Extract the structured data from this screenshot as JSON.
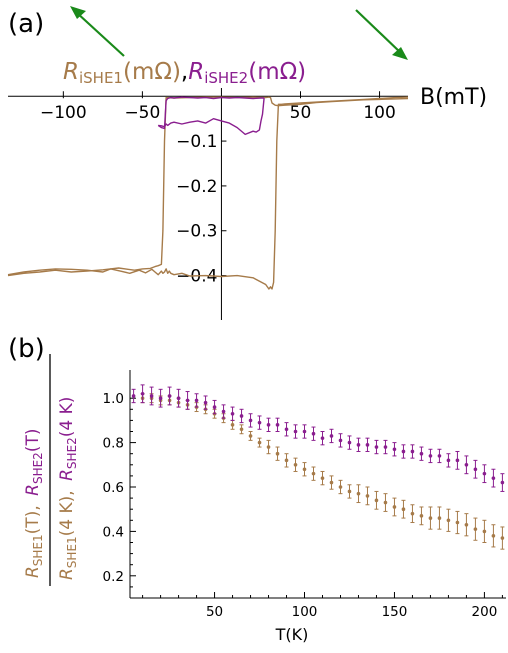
{
  "panels": {
    "a": {
      "label": "(a)",
      "legend": {
        "rishe1": {
          "main": "R",
          "sub": "iSHE1",
          "unit": "(mΩ)"
        },
        "comma": ",",
        "rishe2": {
          "main": "R",
          "sub": "iSHE2",
          "unit": "(mΩ)"
        }
      },
      "xlabel": "B(mT)"
    },
    "b": {
      "label": "(b)",
      "xlabel": "T(K)",
      "ylabel": {
        "num1_main": "R",
        "num1_sub": "SHE1",
        "num1_rest": "(T),",
        "num2_main": "R",
        "num2_sub": "SHE2",
        "num2_rest": "(T)",
        "den1_main": "R",
        "den1_sub": "SHE1",
        "den1_rest": "(4 K),",
        "den2_main": "R",
        "den2_sub": "SHE2",
        "den2_rest": "(4 K)"
      }
    }
  },
  "colors": {
    "series1": "#a67b4a",
    "series2": "#8a1e8f",
    "arrow": "#1a8a1a",
    "axis": "#000000"
  },
  "icons": {
    "arrow_up_left": "arrow-up-left-icon",
    "arrow_down_right": "arrow-down-right-icon"
  },
  "chart_data": [
    {
      "type": "line",
      "panel": "a",
      "xlabel": "B(mT)",
      "xlim": [
        -135,
        118
      ],
      "ylim": [
        -0.45,
        0.005
      ],
      "x_ticks": [
        -100,
        -50,
        50,
        100
      ],
      "x_tick_labels": [
        "−100",
        "−50",
        "50",
        "100"
      ],
      "y_ticks": [
        -0.1,
        -0.2,
        -0.3,
        -0.4
      ],
      "y_tick_labels": [
        "−0.1",
        "−0.2",
        "−0.3",
        "−0.4"
      ],
      "series": [
        {
          "name": "RiSHE1",
          "color": "#a67b4a",
          "sweeps": [
            {
              "x": [
                -135,
                -125,
                -115,
                -105,
                -95,
                -85,
                -75,
                -65,
                -55,
                -50,
                -45,
                -42,
                -40,
                -38,
                -37,
                -36,
                -35,
                -30,
                -20,
                -10,
                0,
                10,
                20,
                28,
                30,
                31,
                32,
                34,
                36,
                40,
                50,
                60,
                70,
                80,
                90,
                100,
                110,
                118
              ],
              "y": [
                -0.4,
                -0.395,
                -0.392,
                -0.388,
                -0.392,
                -0.39,
                -0.387,
                -0.383,
                -0.388,
                -0.385,
                -0.384,
                -0.38,
                -0.378,
                -0.375,
                -0.3,
                -0.1,
                -0.003,
                -0.004,
                -0.003,
                -0.002,
                -0.002,
                -0.003,
                -0.002,
                -0.003,
                -0.002,
                -0.003,
                -0.015,
                -0.02,
                -0.021,
                -0.02,
                -0.018,
                -0.014,
                -0.012,
                -0.01,
                -0.008,
                -0.007,
                -0.006,
                -0.005
              ]
            },
            {
              "x": [
                118,
                110,
                100,
                90,
                80,
                70,
                60,
                50,
                40,
                38,
                36,
                35,
                34,
                33,
                32,
                31,
                30,
                28,
                20,
                10,
                0,
                -10,
                -20,
                -25,
                -30,
                -32,
                -33,
                -34,
                -35,
                -36,
                -37,
                -38,
                -40,
                -42,
                -44,
                -48,
                -52,
                -58,
                -64,
                -70,
                -75,
                -85,
                -95,
                -105,
                -115,
                -125,
                -135
              ],
              "y": [
                -0.002,
                -0.003,
                -0.005,
                -0.007,
                -0.009,
                -0.011,
                -0.013,
                -0.015,
                -0.017,
                -0.018,
                -0.018,
                -0.1,
                -0.3,
                -0.415,
                -0.43,
                -0.425,
                -0.43,
                -0.42,
                -0.405,
                -0.4,
                -0.402,
                -0.4,
                -0.401,
                -0.395,
                -0.398,
                -0.395,
                -0.39,
                -0.395,
                -0.385,
                -0.392,
                -0.395,
                -0.39,
                -0.398,
                -0.392,
                -0.386,
                -0.394,
                -0.388,
                -0.395,
                -0.39,
                -0.385,
                -0.392,
                -0.388,
                -0.386,
                -0.385,
                -0.388,
                -0.392,
                -0.398
              ]
            }
          ]
        },
        {
          "name": "RiSHE2",
          "color": "#8a1e8f",
          "sweeps": [
            {
              "x": [
                -40,
                -38,
                -36,
                -35,
                -34,
                -33,
                -32,
                -30,
                -25,
                -20,
                -15,
                -10,
                -5,
                0,
                5,
                10,
                15,
                20,
                25,
                27
              ],
              "y": [
                -0.065,
                -0.07,
                -0.072,
                -0.01,
                -0.005,
                -0.004,
                -0.003,
                -0.004,
                -0.002,
                -0.003,
                -0.004,
                -0.003,
                -0.005,
                -0.003,
                -0.004,
                -0.003,
                -0.004,
                -0.005,
                -0.004,
                -0.004
              ]
            },
            {
              "x": [
                27,
                26,
                25,
                24,
                22,
                20,
                15,
                10,
                5,
                0,
                -5,
                -10,
                -15,
                -20,
                -25,
                -30,
                -32,
                -34,
                -35,
                -36,
                -38,
                -40
              ],
              "y": [
                -0.004,
                -0.04,
                -0.055,
                -0.075,
                -0.08,
                -0.078,
                -0.085,
                -0.07,
                -0.06,
                -0.055,
                -0.05,
                -0.06,
                -0.055,
                -0.058,
                -0.062,
                -0.058,
                -0.06,
                -0.065,
                -0.062,
                -0.068,
                -0.066,
                -0.065
              ]
            }
          ]
        }
      ]
    },
    {
      "type": "scatter",
      "panel": "b",
      "xlabel": "T(K)",
      "xlim": [
        3,
        212
      ],
      "ylim": [
        0.1,
        1.1
      ],
      "x_ticks": [
        50,
        100,
        150,
        200
      ],
      "x_tick_labels": [
        "50",
        "100",
        "150",
        "200"
      ],
      "y_ticks": [
        0.2,
        0.4,
        0.6,
        0.8,
        1.0
      ],
      "y_tick_labels": [
        "0.2",
        "0.4",
        "0.6",
        "0.8",
        "1.0"
      ],
      "error_bars": true,
      "series": [
        {
          "name": "RSHE1",
          "color": "#a67b4a",
          "x": [
            10,
            15,
            20,
            25,
            30,
            35,
            40,
            45,
            50,
            55,
            60,
            65,
            70,
            75,
            80,
            85,
            90,
            95,
            100,
            105,
            110,
            115,
            120,
            125,
            130,
            135,
            140,
            145,
            150,
            155,
            160,
            165,
            170,
            175,
            180,
            185,
            190,
            195,
            200,
            205,
            210
          ],
          "y": [
            1.0,
            1.0,
            0.99,
            0.99,
            0.98,
            0.97,
            0.96,
            0.95,
            0.93,
            0.91,
            0.88,
            0.86,
            0.83,
            0.8,
            0.78,
            0.75,
            0.72,
            0.7,
            0.68,
            0.66,
            0.64,
            0.62,
            0.6,
            0.58,
            0.57,
            0.56,
            0.54,
            0.53,
            0.51,
            0.5,
            0.48,
            0.47,
            0.46,
            0.46,
            0.45,
            0.44,
            0.43,
            0.41,
            0.4,
            0.38,
            0.37
          ],
          "err": [
            0.02,
            0.02,
            0.02,
            0.02,
            0.02,
            0.02,
            0.02,
            0.02,
            0.02,
            0.02,
            0.02,
            0.02,
            0.02,
            0.02,
            0.03,
            0.03,
            0.03,
            0.03,
            0.03,
            0.03,
            0.03,
            0.03,
            0.03,
            0.03,
            0.04,
            0.04,
            0.04,
            0.04,
            0.04,
            0.04,
            0.04,
            0.04,
            0.05,
            0.05,
            0.05,
            0.05,
            0.05,
            0.05,
            0.05,
            0.05,
            0.05
          ]
        },
        {
          "name": "RSHE2",
          "color": "#8a1e8f",
          "x": [
            5,
            10,
            15,
            20,
            25,
            30,
            35,
            40,
            45,
            50,
            55,
            60,
            65,
            70,
            75,
            80,
            85,
            90,
            95,
            100,
            105,
            110,
            115,
            120,
            125,
            130,
            135,
            140,
            145,
            150,
            155,
            160,
            165,
            170,
            175,
            180,
            185,
            190,
            195,
            200,
            205,
            210
          ],
          "y": [
            1.01,
            1.02,
            1.01,
            1.0,
            1.01,
            1.0,
            0.99,
            0.99,
            0.98,
            0.96,
            0.94,
            0.93,
            0.92,
            0.9,
            0.89,
            0.88,
            0.88,
            0.86,
            0.85,
            0.85,
            0.84,
            0.82,
            0.83,
            0.81,
            0.8,
            0.79,
            0.79,
            0.78,
            0.78,
            0.77,
            0.76,
            0.76,
            0.75,
            0.74,
            0.74,
            0.72,
            0.72,
            0.7,
            0.68,
            0.66,
            0.64,
            0.62
          ],
          "err": [
            0.03,
            0.04,
            0.04,
            0.04,
            0.04,
            0.04,
            0.04,
            0.03,
            0.03,
            0.03,
            0.03,
            0.03,
            0.03,
            0.03,
            0.03,
            0.03,
            0.03,
            0.03,
            0.03,
            0.03,
            0.03,
            0.03,
            0.03,
            0.03,
            0.03,
            0.03,
            0.03,
            0.03,
            0.03,
            0.03,
            0.03,
            0.03,
            0.03,
            0.03,
            0.03,
            0.03,
            0.04,
            0.04,
            0.04,
            0.04,
            0.04,
            0.04
          ]
        }
      ]
    }
  ]
}
